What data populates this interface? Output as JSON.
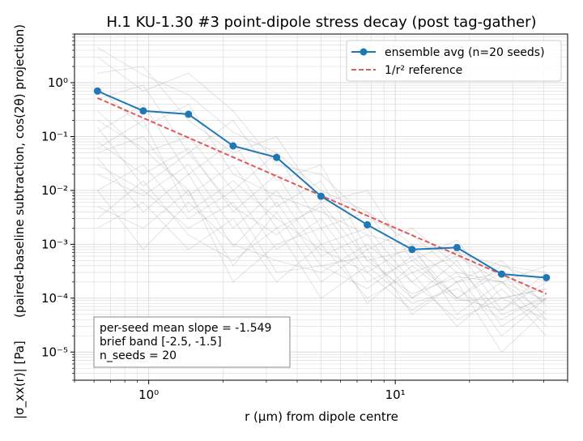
{
  "chart_data": {
    "type": "line",
    "title": "H.1 KU-1.30 #3 point-dipole stress decay (post tag-gather)",
    "xlabel": "r (μm) from dipole centre",
    "ylabel_line1": "|σ_xx(r)| [Pa]",
    "ylabel_line2": "(paired-baseline subtraction, cos(2θ) projection)",
    "x_scale": "log",
    "y_scale": "log",
    "xlim": [
      0.5,
      50
    ],
    "ylim": [
      3e-06,
      8
    ],
    "x_ticks": [
      {
        "value": 1,
        "label": "10⁰"
      },
      {
        "value": 10,
        "label": "10¹"
      }
    ],
    "y_ticks": [
      {
        "value": 1e-05,
        "label": "10⁻⁵"
      },
      {
        "value": 0.0001,
        "label": "10⁻⁴"
      },
      {
        "value": 0.001,
        "label": "10⁻³"
      },
      {
        "value": 0.01,
        "label": "10⁻²"
      },
      {
        "value": 0.1,
        "label": "10⁻¹"
      },
      {
        "value": 1,
        "label": "10⁰"
      }
    ],
    "grid": true,
    "legend_position": "top-right",
    "series": [
      {
        "name": "ensemble avg (n=20 seeds)",
        "color": "#1f77b4",
        "style": "solid-with-markers",
        "x": [
          0.62,
          0.95,
          1.45,
          2.2,
          3.3,
          5.0,
          7.7,
          11.7,
          17.8,
          27.0,
          41.0
        ],
        "y": [
          0.7,
          0.3,
          0.26,
          0.067,
          0.041,
          0.0078,
          0.0023,
          0.0008,
          0.00087,
          0.00028,
          0.00024
        ]
      },
      {
        "name": "1/r² reference",
        "color": "#d62728",
        "style": "dashed",
        "x": [
          0.62,
          41.0
        ],
        "y": [
          0.52,
          0.00012
        ]
      }
    ],
    "seed_traces": [
      [
        4.5,
        1.4,
        0.6,
        0.12,
        0.05,
        0.01,
        0.004,
        0.001,
        0.0007,
        0.0004,
        0.0002
      ],
      [
        3.0,
        0.7,
        1.5,
        0.3,
        0.03,
        0.02,
        0.003,
        0.0015,
        0.0003,
        0.0002,
        0.0004
      ],
      [
        1.5,
        2.0,
        0.2,
        0.05,
        0.1,
        0.006,
        0.01,
        0.0005,
        0.0012,
        0.0001,
        0.00015
      ],
      [
        0.8,
        0.15,
        0.4,
        0.02,
        0.008,
        0.004,
        0.0015,
        0.0009,
        0.0002,
        0.0003,
        8e-05
      ],
      [
        0.5,
        0.9,
        0.05,
        0.2,
        0.015,
        0.03,
        0.0008,
        0.002,
        0.0004,
        5e-05,
        0.0001
      ],
      [
        0.3,
        0.05,
        0.1,
        0.01,
        0.05,
        0.002,
        0.004,
        0.0003,
        0.0006,
        0.0002,
        3e-05
      ],
      [
        0.12,
        0.4,
        0.02,
        0.08,
        0.005,
        0.015,
        0.0005,
        0.0008,
        0.0001,
        0.0004,
        0.0003
      ],
      [
        0.08,
        0.02,
        0.06,
        0.004,
        0.02,
        0.001,
        0.002,
        0.0002,
        0.0008,
        6e-05,
        0.0002
      ],
      [
        0.05,
        0.1,
        0.008,
        0.03,
        0.002,
        0.005,
        0.0003,
        0.001,
        5e-05,
        0.0002,
        5e-05
      ],
      [
        0.02,
        0.008,
        0.03,
        0.002,
        0.01,
        0.0006,
        0.0015,
        0.0001,
        0.0003,
        2e-05,
        0.0001
      ],
      [
        0.01,
        0.03,
        0.003,
        0.01,
        0.0008,
        0.003,
        0.0002,
        0.0005,
        0.0001,
        0.0003,
        4e-05
      ],
      [
        0.005,
        0.002,
        0.01,
        0.0004,
        0.004,
        0.0002,
        0.0008,
        5e-05,
        0.0002,
        1e-05,
        6e-05
      ],
      [
        0.002,
        0.006,
        0.0008,
        0.003,
        0.0002,
        0.001,
        0.0001,
        0.0003,
        3e-05,
        0.00015,
        2e-05
      ],
      [
        0.03,
        0.01,
        0.002,
        0.006,
        0.0003,
        0.0004,
        0.0006,
        0.0001,
        0.0005,
        3e-05,
        0.0001
      ],
      [
        0.2,
        0.06,
        0.01,
        0.0002,
        0.001,
        0.002,
        8e-05,
        0.0004,
        9e-05,
        0.0001,
        4e-05
      ],
      [
        0.06,
        0.2,
        0.004,
        0.015,
        0.003,
        0.0008,
        0.0003,
        6e-05,
        0.0002,
        0.0005,
        7e-05
      ],
      [
        0.01,
        0.0008,
        0.006,
        0.001,
        0.0005,
        0.0003,
        0.001,
        0.0002,
        4e-05,
        0.0001,
        0.00015
      ],
      [
        0.04,
        0.004,
        0.02,
        0.0009,
        0.006,
        0.0004,
        0.00015,
        0.0006,
        0.0001,
        6e-05,
        0.0003
      ],
      [
        0.15,
        0.012,
        0.05,
        0.005,
        0.0015,
        0.006,
        0.0005,
        0.00012,
        0.00025,
        0.0002,
        9e-05
      ],
      [
        0.003,
        0.015,
        0.0015,
        0.0005,
        0.002,
        0.0001,
        0.0004,
        8e-05,
        0.00015,
        4e-05,
        0.00012
      ]
    ],
    "annotation": {
      "line1": "per-seed mean slope = -1.549",
      "line2": "brief band [-2.5, -1.5]",
      "line3": "n_seeds = 20"
    }
  }
}
